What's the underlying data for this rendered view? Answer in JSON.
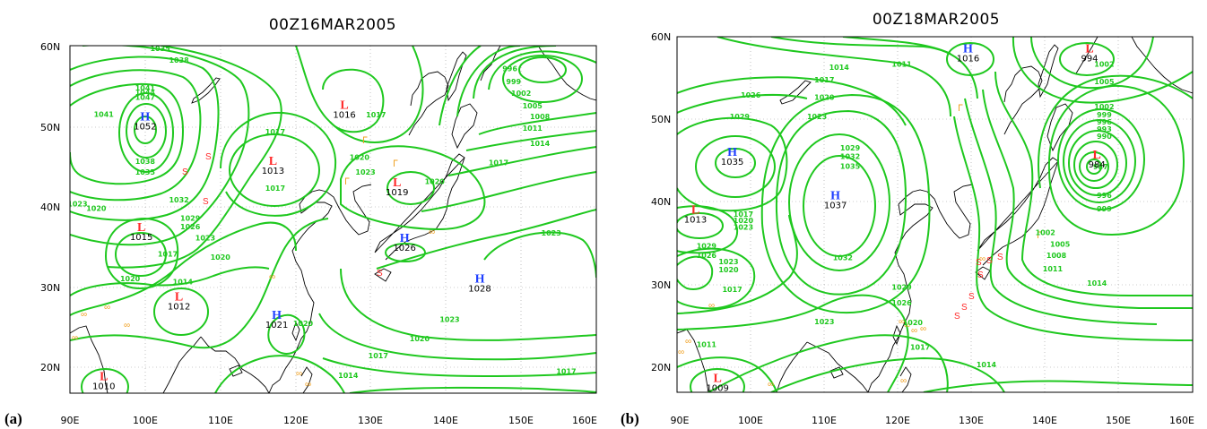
{
  "colors": {
    "isobar": "#1fc81f",
    "high": "#1f3fff",
    "low": "#ff2a2a",
    "weather_symbol": "#f0a020",
    "coast": "#000000"
  },
  "panels": [
    {
      "letter": "(a)",
      "title": "00Z16MAR2005",
      "lat_ticks": [
        "60N",
        "50N",
        "40N",
        "30N",
        "20N"
      ],
      "lon_ticks": [
        "90E",
        "100E",
        "110E",
        "120E",
        "130E",
        "140E",
        "150E",
        "160E"
      ],
      "isobar_labels": [
        {
          "text": "1035",
          "lon": 102,
          "lat": 59.3
        },
        {
          "text": "1038",
          "lon": 104.5,
          "lat": 57.8
        },
        {
          "text": "1041",
          "lon": 100,
          "lat": 54.2
        },
        {
          "text": "1044",
          "lon": 100,
          "lat": 53.6
        },
        {
          "text": "1047",
          "lon": 100,
          "lat": 53.0
        },
        {
          "text": "1041",
          "lon": 94.5,
          "lat": 50.8
        },
        {
          "text": "1038",
          "lon": 100,
          "lat": 44.7
        },
        {
          "text": "1035",
          "lon": 100,
          "lat": 43.3
        },
        {
          "text": "1032",
          "lon": 104.5,
          "lat": 39.7
        },
        {
          "text": "1023",
          "lon": 91,
          "lat": 39.2
        },
        {
          "text": "1020",
          "lon": 93.5,
          "lat": 38.6
        },
        {
          "text": "1029",
          "lon": 106,
          "lat": 37.3
        },
        {
          "text": "1026",
          "lon": 106,
          "lat": 36.2
        },
        {
          "text": "1023",
          "lon": 108,
          "lat": 34.8
        },
        {
          "text": "1017",
          "lon": 103,
          "lat": 32.7
        },
        {
          "text": "1020",
          "lon": 110,
          "lat": 32.3
        },
        {
          "text": "1020",
          "lon": 98,
          "lat": 29.5
        },
        {
          "text": "1014",
          "lon": 105,
          "lat": 29.1
        },
        {
          "text": "1017",
          "lon": 117.3,
          "lat": 48.5
        },
        {
          "text": "1017",
          "lon": 117.3,
          "lat": 41.2
        },
        {
          "text": "1017",
          "lon": 130.7,
          "lat": 50.7
        },
        {
          "text": "1020",
          "lon": 128.5,
          "lat": 45.2
        },
        {
          "text": "1023",
          "lon": 129.3,
          "lat": 43.3
        },
        {
          "text": "1020",
          "lon": 138.5,
          "lat": 42.1
        },
        {
          "text": "1017",
          "lon": 147,
          "lat": 44.5
        },
        {
          "text": "1014",
          "lon": 152.5,
          "lat": 47.0
        },
        {
          "text": "1011",
          "lon": 151.5,
          "lat": 49.0
        },
        {
          "text": "1008",
          "lon": 152.5,
          "lat": 50.5
        },
        {
          "text": "1005",
          "lon": 151.5,
          "lat": 51.9
        },
        {
          "text": "1002",
          "lon": 150,
          "lat": 53.5
        },
        {
          "text": "999",
          "lon": 149,
          "lat": 55.0
        },
        {
          "text": "996",
          "lon": 148.5,
          "lat": 56.7
        },
        {
          "text": "1023",
          "lon": 154,
          "lat": 35.4
        },
        {
          "text": "1023",
          "lon": 140.5,
          "lat": 24.2
        },
        {
          "text": "1020",
          "lon": 136.5,
          "lat": 21.7
        },
        {
          "text": "1017",
          "lon": 131,
          "lat": 19.5
        },
        {
          "text": "1017",
          "lon": 156,
          "lat": 17.5
        },
        {
          "text": "1014",
          "lon": 127,
          "lat": 17.0
        },
        {
          "text": "1020",
          "lon": 121,
          "lat": 23.7
        }
      ],
      "centers": [
        {
          "type": "H",
          "value": "1052",
          "lon": 100,
          "lat": 50.3
        },
        {
          "type": "L",
          "value": "1016",
          "lon": 126.5,
          "lat": 51.8
        },
        {
          "type": "L",
          "value": "1013",
          "lon": 117,
          "lat": 44.6
        },
        {
          "type": "L",
          "value": "1019",
          "lon": 133.5,
          "lat": 41.8
        },
        {
          "type": "L",
          "value": "1015",
          "lon": 99.5,
          "lat": 36.0
        },
        {
          "type": "H",
          "value": "1026",
          "lon": 134.5,
          "lat": 34.6
        },
        {
          "type": "H",
          "value": "1028",
          "lon": 144.5,
          "lat": 29.3
        },
        {
          "type": "L",
          "value": "1012",
          "lon": 104.5,
          "lat": 27.0
        },
        {
          "type": "H",
          "value": "1021",
          "lon": 117.5,
          "lat": 24.6
        },
        {
          "type": "L",
          "value": "1010",
          "lon": 94.5,
          "lat": 16.7
        }
      ]
    },
    {
      "letter": "(b)",
      "title": "00Z18MAR2005",
      "lat_ticks": [
        "60N",
        "50N",
        "40N",
        "30N",
        "20N"
      ],
      "lon_ticks": [
        "90E",
        "100E",
        "110E",
        "120E",
        "130E",
        "140E",
        "150E",
        "160E"
      ],
      "isobar_labels": [
        {
          "text": "1014",
          "lon": 112,
          "lat": 55.8
        },
        {
          "text": "1011",
          "lon": 120.5,
          "lat": 56.2
        },
        {
          "text": "1017",
          "lon": 110,
          "lat": 54.2
        },
        {
          "text": "1026",
          "lon": 100,
          "lat": 52.3
        },
        {
          "text": "1020",
          "lon": 110,
          "lat": 52.0
        },
        {
          "text": "1023",
          "lon": 109,
          "lat": 49.6
        },
        {
          "text": "1029",
          "lon": 98.5,
          "lat": 49.6
        },
        {
          "text": "1029",
          "lon": 113.5,
          "lat": 45.6
        },
        {
          "text": "1032",
          "lon": 113.5,
          "lat": 44.5
        },
        {
          "text": "1035",
          "lon": 113.5,
          "lat": 43.3
        },
        {
          "text": "1017",
          "lon": 99,
          "lat": 37.2
        },
        {
          "text": "1020",
          "lon": 99,
          "lat": 36.4
        },
        {
          "text": "1023",
          "lon": 99,
          "lat": 35.6
        },
        {
          "text": "1029",
          "lon": 94,
          "lat": 33.2
        },
        {
          "text": "1026",
          "lon": 94,
          "lat": 32.0
        },
        {
          "text": "1023",
          "lon": 97,
          "lat": 31.2
        },
        {
          "text": "1020",
          "lon": 97,
          "lat": 30.2
        },
        {
          "text": "1017",
          "lon": 97.5,
          "lat": 27.7
        },
        {
          "text": "1032",
          "lon": 112.5,
          "lat": 31.7
        },
        {
          "text": "1029",
          "lon": 120.5,
          "lat": 28.0
        },
        {
          "text": "1026",
          "lon": 120.5,
          "lat": 26.0
        },
        {
          "text": "1023",
          "lon": 110,
          "lat": 23.6
        },
        {
          "text": "1020",
          "lon": 122,
          "lat": 23.5
        },
        {
          "text": "1017",
          "lon": 123,
          "lat": 20.4
        },
        {
          "text": "1014",
          "lon": 132,
          "lat": 18.2
        },
        {
          "text": "1011",
          "lon": 94,
          "lat": 20.7
        },
        {
          "text": "1002",
          "lon": 148,
          "lat": 56.2
        },
        {
          "text": "1005",
          "lon": 148,
          "lat": 54.0
        },
        {
          "text": "1002",
          "lon": 148,
          "lat": 50.8
        },
        {
          "text": "999",
          "lon": 148,
          "lat": 49.8
        },
        {
          "text": "996",
          "lon": 148,
          "lat": 48.9
        },
        {
          "text": "993",
          "lon": 148,
          "lat": 48.0
        },
        {
          "text": "990",
          "lon": 148,
          "lat": 47.1
        },
        {
          "text": "987",
          "lon": 147.5,
          "lat": 43.2
        },
        {
          "text": "996",
          "lon": 148,
          "lat": 39.6
        },
        {
          "text": "999",
          "lon": 148,
          "lat": 37.9
        },
        {
          "text": "1002",
          "lon": 140,
          "lat": 34.9
        },
        {
          "text": "1005",
          "lon": 142,
          "lat": 33.4
        },
        {
          "text": "1008",
          "lon": 141.5,
          "lat": 32.0
        },
        {
          "text": "1011",
          "lon": 141,
          "lat": 30.3
        },
        {
          "text": "1014",
          "lon": 147,
          "lat": 28.5
        }
      ],
      "centers": [
        {
          "type": "H",
          "value": "1016",
          "lon": 129.5,
          "lat": 58.0
        },
        {
          "type": "L",
          "value": "994",
          "lon": 146,
          "lat": 58.0
        },
        {
          "type": "H",
          "value": "1035",
          "lon": 97.5,
          "lat": 44.9
        },
        {
          "type": "L",
          "value": "984",
          "lon": 147,
          "lat": 44.6
        },
        {
          "type": "H",
          "value": "1037",
          "lon": 111.5,
          "lat": 39.4
        },
        {
          "type": "L",
          "value": "1013",
          "lon": 92.5,
          "lat": 37.6
        },
        {
          "type": "L",
          "value": "1009",
          "lon": 95.5,
          "lat": 16.3
        }
      ]
    }
  ]
}
